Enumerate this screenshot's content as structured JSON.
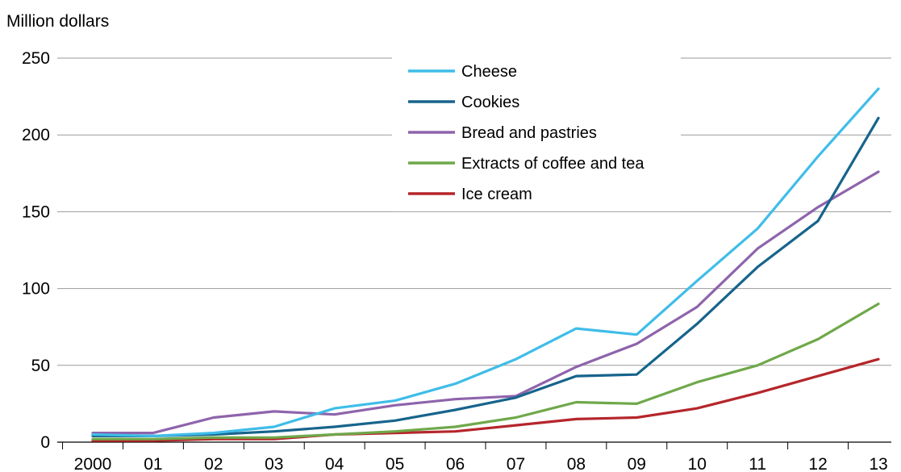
{
  "chart_data": {
    "type": "line",
    "ylabel": "Million dollars",
    "xlabel": "",
    "categories": [
      "2000",
      "01",
      "02",
      "03",
      "04",
      "05",
      "06",
      "07",
      "08",
      "09",
      "10",
      "11",
      "12",
      "13"
    ],
    "ylim": [
      0,
      250
    ],
    "yticks": [
      0,
      50,
      100,
      150,
      200,
      250
    ],
    "grid": true,
    "legend_position": "top-center",
    "series": [
      {
        "name": "Cheese",
        "color": "#3fbde8",
        "values": [
          5,
          4,
          6,
          10,
          22,
          27,
          38,
          54,
          74,
          70,
          105,
          139,
          186,
          230
        ]
      },
      {
        "name": "Cookies",
        "color": "#17648c",
        "values": [
          4,
          4,
          5,
          7,
          10,
          14,
          21,
          29,
          43,
          44,
          77,
          114,
          144,
          211
        ]
      },
      {
        "name": "Bread and pastries",
        "color": "#8e64ab",
        "values": [
          6,
          6,
          16,
          20,
          18,
          24,
          28,
          30,
          49,
          64,
          88,
          126,
          153,
          176
        ]
      },
      {
        "name": "Extracts of coffee and tea",
        "color": "#6fa84a",
        "values": [
          2,
          2,
          3,
          3,
          5,
          7,
          10,
          16,
          26,
          25,
          39,
          50,
          67,
          90
        ]
      },
      {
        "name": "Ice cream",
        "color": "#b5262b",
        "values": [
          1,
          1,
          2,
          2,
          5,
          6,
          7,
          11,
          15,
          16,
          22,
          32,
          43,
          54
        ]
      }
    ]
  }
}
